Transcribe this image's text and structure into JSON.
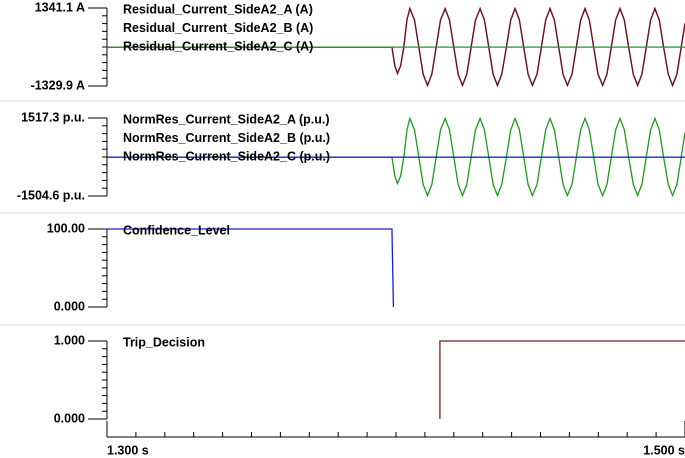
{
  "chart_data": [
    {
      "type": "line",
      "xlim": [
        1.3,
        1.5
      ],
      "ylim": [
        -1329.9,
        1341.1
      ],
      "yticks": [
        {
          "value": 1341.1,
          "label": "1341.1 A"
        },
        {
          "value": -1329.9,
          "label": "-1329.9 A"
        }
      ],
      "x": [
        1.3,
        1.3986,
        1.3996,
        1.4005,
        1.4016,
        1.4027,
        1.4038,
        1.4048,
        1.4064,
        1.4079,
        1.4094,
        1.4109,
        1.4124,
        1.4139,
        1.4154,
        1.417,
        1.4185,
        1.42,
        1.4215,
        1.423,
        1.4245,
        1.426,
        1.4275,
        1.4291,
        1.4306,
        1.4321,
        1.4336,
        1.4351,
        1.4366,
        1.4382,
        1.4397,
        1.4412,
        1.4427,
        1.4442,
        1.4457,
        1.4472,
        1.4488,
        1.4503,
        1.4518,
        1.4533,
        1.4548,
        1.4563,
        1.4578,
        1.4593,
        1.4609,
        1.4624,
        1.4639,
        1.4654,
        1.4669,
        1.4684,
        1.4699,
        1.4715,
        1.473,
        1.4745,
        1.476,
        1.4775,
        1.479,
        1.4805,
        1.4821,
        1.4836,
        1.4851,
        1.4866,
        1.4881,
        1.4896,
        1.4911,
        1.4926,
        1.4942,
        1.4957,
        1.4972,
        1.4987,
        1.5
      ],
      "series": [
        {
          "name": "Residual_Current_SideA2_A (A)",
          "color": "#7a1f2e",
          "values": [
            0,
            0,
            -640,
            -900,
            -640,
            0,
            940,
            1320,
            930,
            0,
            -925,
            -1310,
            -925,
            0,
            930,
            1320,
            930,
            0,
            -925,
            -1310,
            -925,
            0,
            930,
            1320,
            930,
            0,
            -925,
            -1310,
            -925,
            0,
            930,
            1320,
            930,
            0,
            -925,
            -1310,
            -925,
            0,
            930,
            1320,
            930,
            0,
            -925,
            -1310,
            -925,
            0,
            930,
            1320,
            930,
            0,
            -925,
            -1310,
            -925,
            0,
            930,
            1320,
            930,
            0,
            -925,
            -1310,
            -925,
            0,
            930,
            1320,
            930,
            0,
            -925,
            -1310,
            -925,
            0,
            820
          ]
        },
        {
          "name": "Residual_Current_SideA2_B (A)",
          "color": "#6a1426",
          "values": [
            0,
            0,
            -640,
            -900,
            -640,
            0,
            940,
            1320,
            930,
            0,
            -925,
            -1310,
            -925,
            0,
            930,
            1320,
            930,
            0,
            -925,
            -1310,
            -925,
            0,
            930,
            1320,
            930,
            0,
            -925,
            -1310,
            -925,
            0,
            930,
            1320,
            930,
            0,
            -925,
            -1310,
            -925,
            0,
            930,
            1320,
            930,
            0,
            -925,
            -1310,
            -925,
            0,
            930,
            1320,
            930,
            0,
            -925,
            -1310,
            -925,
            0,
            930,
            1320,
            930,
            0,
            -925,
            -1310,
            -925,
            0,
            930,
            1320,
            930,
            0,
            -925,
            -1310,
            -925,
            0,
            820
          ]
        },
        {
          "name": "Residual_Current_SideA2_C (A)",
          "color": "#1f9a1f",
          "x": [
            1.3,
            1.5
          ],
          "values": [
            0,
            0
          ]
        }
      ]
    },
    {
      "type": "line",
      "xlim": [
        1.3,
        1.5
      ],
      "ylim": [
        -1504.6,
        1517.3
      ],
      "yticks": [
        {
          "value": 1517.3,
          "label": "1517.3 p.u."
        },
        {
          "value": -1504.6,
          "label": "-1504.6 p.u."
        }
      ],
      "x": [
        1.3,
        1.3986,
        1.3996,
        1.4005,
        1.4016,
        1.4027,
        1.4038,
        1.4048,
        1.4064,
        1.4079,
        1.4094,
        1.4109,
        1.4124,
        1.4139,
        1.4154,
        1.417,
        1.4185,
        1.42,
        1.4215,
        1.423,
        1.4245,
        1.426,
        1.4275,
        1.4291,
        1.4306,
        1.4321,
        1.4336,
        1.4351,
        1.4366,
        1.4382,
        1.4397,
        1.4412,
        1.4427,
        1.4442,
        1.4457,
        1.4472,
        1.4488,
        1.4503,
        1.4518,
        1.4533,
        1.4548,
        1.4563,
        1.4578,
        1.4593,
        1.4609,
        1.4624,
        1.4639,
        1.4654,
        1.4669,
        1.4684,
        1.4699,
        1.4715,
        1.473,
        1.4745,
        1.476,
        1.4775,
        1.479,
        1.4805,
        1.4821,
        1.4836,
        1.4851,
        1.4866,
        1.4881,
        1.4896,
        1.4911,
        1.4926,
        1.4942,
        1.4957,
        1.4972,
        1.4987,
        1.5
      ],
      "series": [
        {
          "name": "NormRes_Current_SideA2_A (p.u.)",
          "color": "#1f9a1f",
          "values": [
            0,
            0,
            -730,
            -1020,
            -730,
            0,
            1060,
            1500,
            1060,
            0,
            -1055,
            -1490,
            -1055,
            0,
            1060,
            1500,
            1060,
            0,
            -1055,
            -1490,
            -1055,
            0,
            1060,
            1500,
            1060,
            0,
            -1055,
            -1490,
            -1055,
            0,
            1060,
            1500,
            1060,
            0,
            -1055,
            -1490,
            -1055,
            0,
            1060,
            1500,
            1060,
            0,
            -1055,
            -1490,
            -1055,
            0,
            1060,
            1500,
            1060,
            0,
            -1055,
            -1490,
            -1055,
            0,
            1060,
            1500,
            1060,
            0,
            -1055,
            -1490,
            -1055,
            0,
            1060,
            1500,
            1060,
            0,
            -1055,
            -1490,
            -1055,
            0,
            940
          ]
        },
        {
          "name": "NormRes_Current_SideA2_B (p.u.)",
          "color": "#1a2bd0",
          "x": [
            1.3,
            1.5
          ],
          "values": [
            0,
            0
          ]
        },
        {
          "name": "NormRes_Current_SideA2_C (p.u.)",
          "color": "#1a2bd0",
          "x": [
            1.3,
            1.5
          ],
          "values": [
            0,
            0
          ]
        }
      ]
    },
    {
      "type": "line",
      "xlim": [
        1.3,
        1.5
      ],
      "ylim": [
        0,
        100
      ],
      "yticks": [
        {
          "value": 100,
          "label": "100.00"
        },
        {
          "value": 0,
          "label": "0.000"
        }
      ],
      "series": [
        {
          "name": "Confidence_Level",
          "color": "#1a1ae0",
          "x": [
            1.3,
            1.3986,
            1.3991
          ],
          "values": [
            100,
            100,
            0
          ]
        }
      ]
    },
    {
      "type": "line",
      "xlim": [
        1.3,
        1.5
      ],
      "ylim": [
        0,
        1
      ],
      "yticks": [
        {
          "value": 1,
          "label": "1.000"
        },
        {
          "value": 0,
          "label": "0.000"
        }
      ],
      "xticks": [
        {
          "value": 1.3,
          "label": "1.300 s"
        },
        {
          "value": 1.5,
          "label": "1.500 s"
        }
      ],
      "series": [
        {
          "name": "Trip_Decision",
          "color": "#7a1f1f",
          "x": [
            1.4152,
            1.4152,
            1.5
          ],
          "values": [
            0,
            1,
            1
          ]
        }
      ]
    }
  ]
}
